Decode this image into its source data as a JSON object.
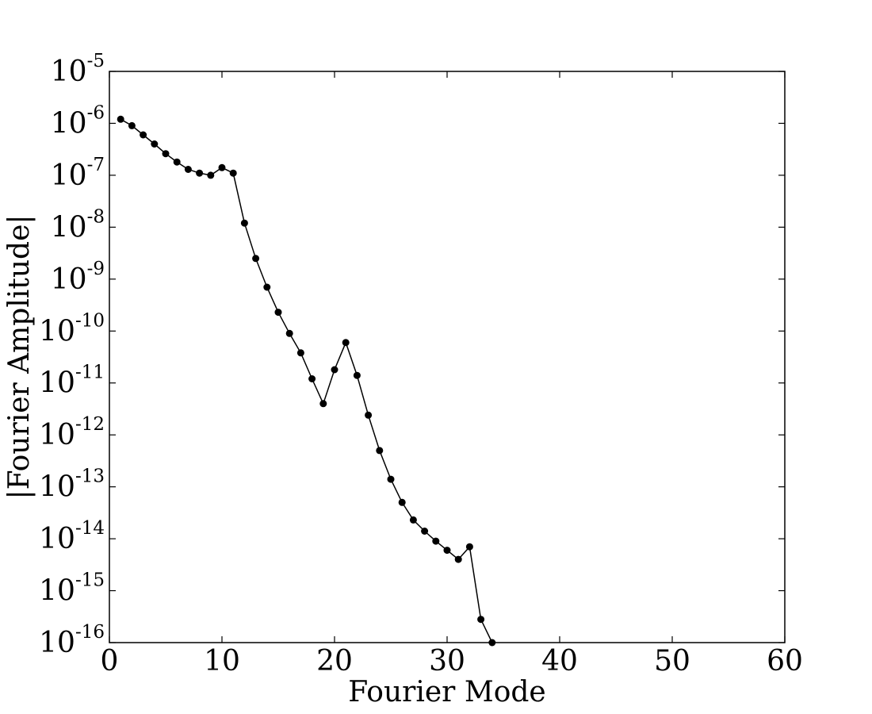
{
  "chart_data": {
    "type": "line",
    "title": "",
    "xlabel": "Fourier Mode",
    "ylabel": "|Fourier Amplitude|",
    "xlim": [
      0,
      60
    ],
    "ylim": [
      1e-16,
      1e-05
    ],
    "yscale": "log",
    "grid": false,
    "legend": "none",
    "line_color": "#000000",
    "marker": "circle",
    "xticks": [
      {
        "value": 0,
        "label": "0"
      },
      {
        "value": 10,
        "label": "10"
      },
      {
        "value": 20,
        "label": "20"
      },
      {
        "value": 30,
        "label": "30"
      },
      {
        "value": 40,
        "label": "40"
      },
      {
        "value": 50,
        "label": "50"
      },
      {
        "value": 60,
        "label": "60"
      }
    ],
    "yticks": [
      {
        "value": 1e-05,
        "base": "10",
        "exp": "-5"
      },
      {
        "value": 1e-06,
        "base": "10",
        "exp": "-6"
      },
      {
        "value": 1e-07,
        "base": "10",
        "exp": "-7"
      },
      {
        "value": 1e-08,
        "base": "10",
        "exp": "-8"
      },
      {
        "value": 1e-09,
        "base": "10",
        "exp": "-9"
      },
      {
        "value": 1e-10,
        "base": "10",
        "exp": "-10"
      },
      {
        "value": 1e-11,
        "base": "10",
        "exp": "-11"
      },
      {
        "value": 1e-12,
        "base": "10",
        "exp": "-12"
      },
      {
        "value": 1e-13,
        "base": "10",
        "exp": "-13"
      },
      {
        "value": 1e-14,
        "base": "10",
        "exp": "-14"
      },
      {
        "value": 1e-15,
        "base": "10",
        "exp": "-15"
      },
      {
        "value": 1e-16,
        "base": "10",
        "exp": "-16"
      }
    ],
    "series": [
      {
        "x": [
          1,
          2,
          3,
          4,
          5,
          6,
          7,
          8,
          9,
          10,
          11,
          12,
          13,
          14,
          15,
          16,
          17,
          18,
          19,
          20,
          21,
          22,
          23,
          24,
          25,
          26,
          27,
          28,
          29,
          30,
          31,
          32,
          33,
          34
        ],
        "y": [
          1.2e-06,
          9e-07,
          6e-07,
          4e-07,
          2.6e-07,
          1.8e-07,
          1.3e-07,
          1.1e-07,
          1e-07,
          1.4e-07,
          1.1e-07,
          1.2e-08,
          2.5e-09,
          7e-10,
          2.3e-10,
          9e-11,
          3.8e-11,
          1.2e-11,
          4e-12,
          1.8e-11,
          6e-11,
          1.4e-11,
          2.4e-12,
          5e-13,
          1.4e-13,
          5e-14,
          2.3e-14,
          1.4e-14,
          9e-15,
          6e-15,
          4e-15,
          7e-15,
          2.8e-16,
          1e-16
        ]
      }
    ]
  }
}
